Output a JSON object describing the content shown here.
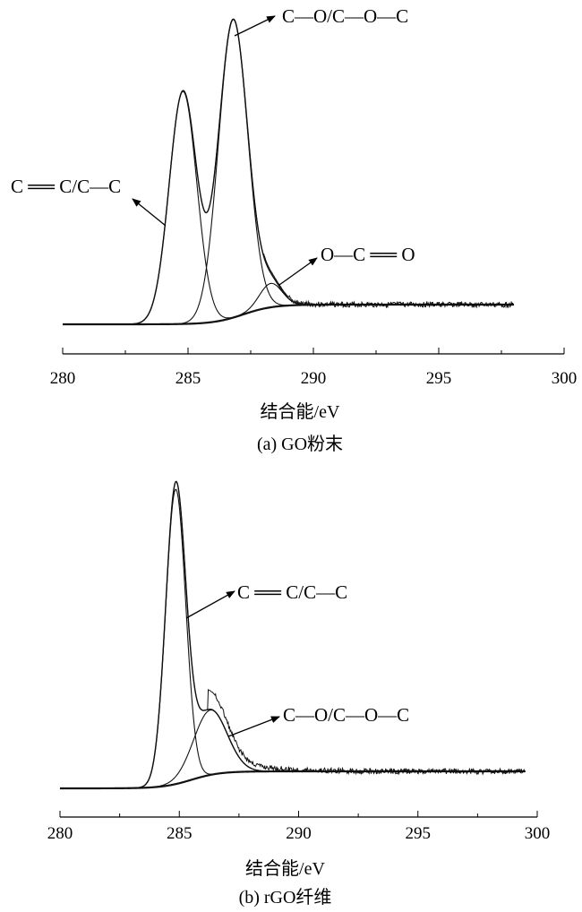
{
  "chart_data": [
    {
      "type": "line",
      "xlabel": "结合能/eV",
      "caption": "(a) GO粉末",
      "xlim": [
        280,
        300
      ],
      "x_ticks": [
        "280",
        "285",
        "290",
        "295",
        "300"
      ],
      "x_range_data": [
        280,
        298
      ],
      "peaks": [
        {
          "label": "C ══ C/C—C",
          "center": 284.8,
          "height": 0.78,
          "width": 0.55
        },
        {
          "label": "C—O/C—O—C",
          "center": 286.8,
          "height": 1.0,
          "width": 0.58
        },
        {
          "label": "O—C ══ O",
          "center": 288.3,
          "height": 0.08,
          "width": 0.45
        }
      ],
      "annotations": [
        {
          "text": "C ══ C/C—C",
          "peak": 0
        },
        {
          "text": "C—O/C—O—C",
          "peak": 1
        },
        {
          "text": "O—C ══ O",
          "peak": 2
        }
      ]
    },
    {
      "type": "line",
      "xlabel": "结合能/eV",
      "caption": "(b) rGO纤维",
      "xlim": [
        280,
        300
      ],
      "x_ticks": [
        "280",
        "285",
        "290",
        "295",
        "300"
      ],
      "x_range_data": [
        280,
        299.5
      ],
      "peaks": [
        {
          "label": "C ══ C/C—C",
          "center": 284.85,
          "height": 1.0,
          "width": 0.42
        },
        {
          "label": "C—O/C—O—C",
          "center": 286.3,
          "height": 0.22,
          "width": 0.7
        }
      ],
      "annotations": [
        {
          "text": "C ══ C/C—C",
          "peak": 0
        },
        {
          "text": "C—O/C—O—C",
          "peak": 1
        }
      ]
    }
  ]
}
